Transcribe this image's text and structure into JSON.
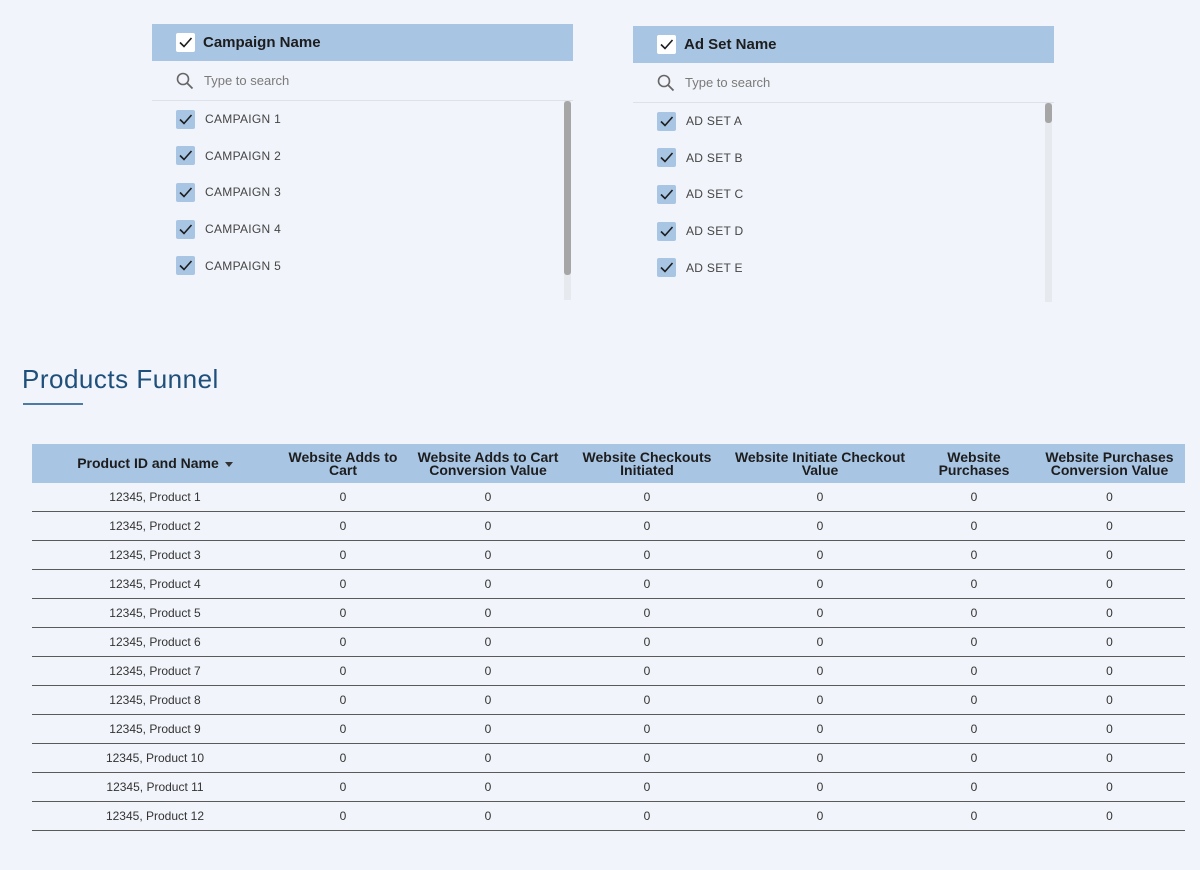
{
  "slicers": [
    {
      "title": "Campaign Name",
      "search_placeholder": "Type to search",
      "items": [
        "CAMPAIGN 1",
        "CAMPAIGN 2",
        "CAMPAIGN 3",
        "CAMPAIGN 4",
        "CAMPAIGN 5"
      ]
    },
    {
      "title": "Ad Set Name",
      "search_placeholder": "Type to search",
      "items": [
        "AD SET A",
        "AD SET B",
        "AD SET C",
        "AD SET D",
        "AD SET E"
      ]
    }
  ],
  "section_title": "Products Funnel",
  "table": {
    "columns": [
      "Product ID and Name",
      "Website Adds to Cart",
      "Website Adds to Cart Conversion Value",
      "Website Checkouts Initiated",
      "Website Initiate Checkout Value",
      "Website Purchases",
      "Website Purchases Conversion Value"
    ],
    "rows": [
      [
        "12345, Product 1",
        0,
        0,
        0,
        0,
        0,
        0
      ],
      [
        "12345, Product 2",
        0,
        0,
        0,
        0,
        0,
        0
      ],
      [
        "12345, Product 3",
        0,
        0,
        0,
        0,
        0,
        0
      ],
      [
        "12345, Product 4",
        0,
        0,
        0,
        0,
        0,
        0
      ],
      [
        "12345, Product 5",
        0,
        0,
        0,
        0,
        0,
        0
      ],
      [
        "12345, Product 6",
        0,
        0,
        0,
        0,
        0,
        0
      ],
      [
        "12345, Product 7",
        0,
        0,
        0,
        0,
        0,
        0
      ],
      [
        "12345, Product 8",
        0,
        0,
        0,
        0,
        0,
        0
      ],
      [
        "12345, Product 9",
        0,
        0,
        0,
        0,
        0,
        0
      ],
      [
        "12345, Product 10",
        0,
        0,
        0,
        0,
        0,
        0
      ],
      [
        "12345, Product 11",
        0,
        0,
        0,
        0,
        0,
        0
      ],
      [
        "12345, Product 12",
        0,
        0,
        0,
        0,
        0,
        0
      ]
    ]
  }
}
